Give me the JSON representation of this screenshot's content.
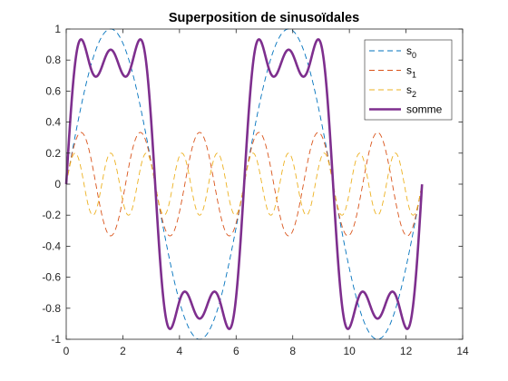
{
  "chart_data": {
    "type": "line",
    "title": "Superposition de sinusoïdales",
    "xlabel": "",
    "ylabel": "",
    "xlim": [
      0,
      14
    ],
    "ylim": [
      -1,
      1
    ],
    "xticks": [
      0,
      2,
      4,
      6,
      8,
      10,
      12,
      14
    ],
    "xtick_labels": [
      "0",
      "2",
      "4",
      "6",
      "8",
      "10",
      "12",
      "14"
    ],
    "yticks": [
      -1,
      -0.8,
      -0.6,
      -0.4,
      -0.2,
      0,
      0.2,
      0.4,
      0.6,
      0.8,
      1
    ],
    "ytick_labels": [
      "-1",
      "-0.8",
      "-0.6",
      "-0.4",
      "-0.2",
      "0",
      "0.2",
      "0.4",
      "0.6",
      "0.8",
      "1"
    ],
    "x_range": [
      0,
      12.566
    ],
    "grid": false,
    "legend_position": "top-right",
    "series": [
      {
        "name": "s",
        "subscript": "0",
        "function": "sin(x)",
        "amplitude": 1,
        "harmonic": 1,
        "color": "#0072BD",
        "style": "dashed"
      },
      {
        "name": "s",
        "subscript": "1",
        "function": "sin(3x)/3",
        "amplitude": 0.333,
        "harmonic": 3,
        "color": "#D95319",
        "style": "dashed"
      },
      {
        "name": "s",
        "subscript": "2",
        "function": "sin(5x)/5",
        "amplitude": 0.2,
        "harmonic": 5,
        "color": "#EDB120",
        "style": "dashed"
      },
      {
        "name": "somme",
        "function": "sin(x)+sin(3x)/3+sin(5x)/5",
        "color": "#7E2F8E",
        "style": "solid-thick"
      }
    ]
  }
}
